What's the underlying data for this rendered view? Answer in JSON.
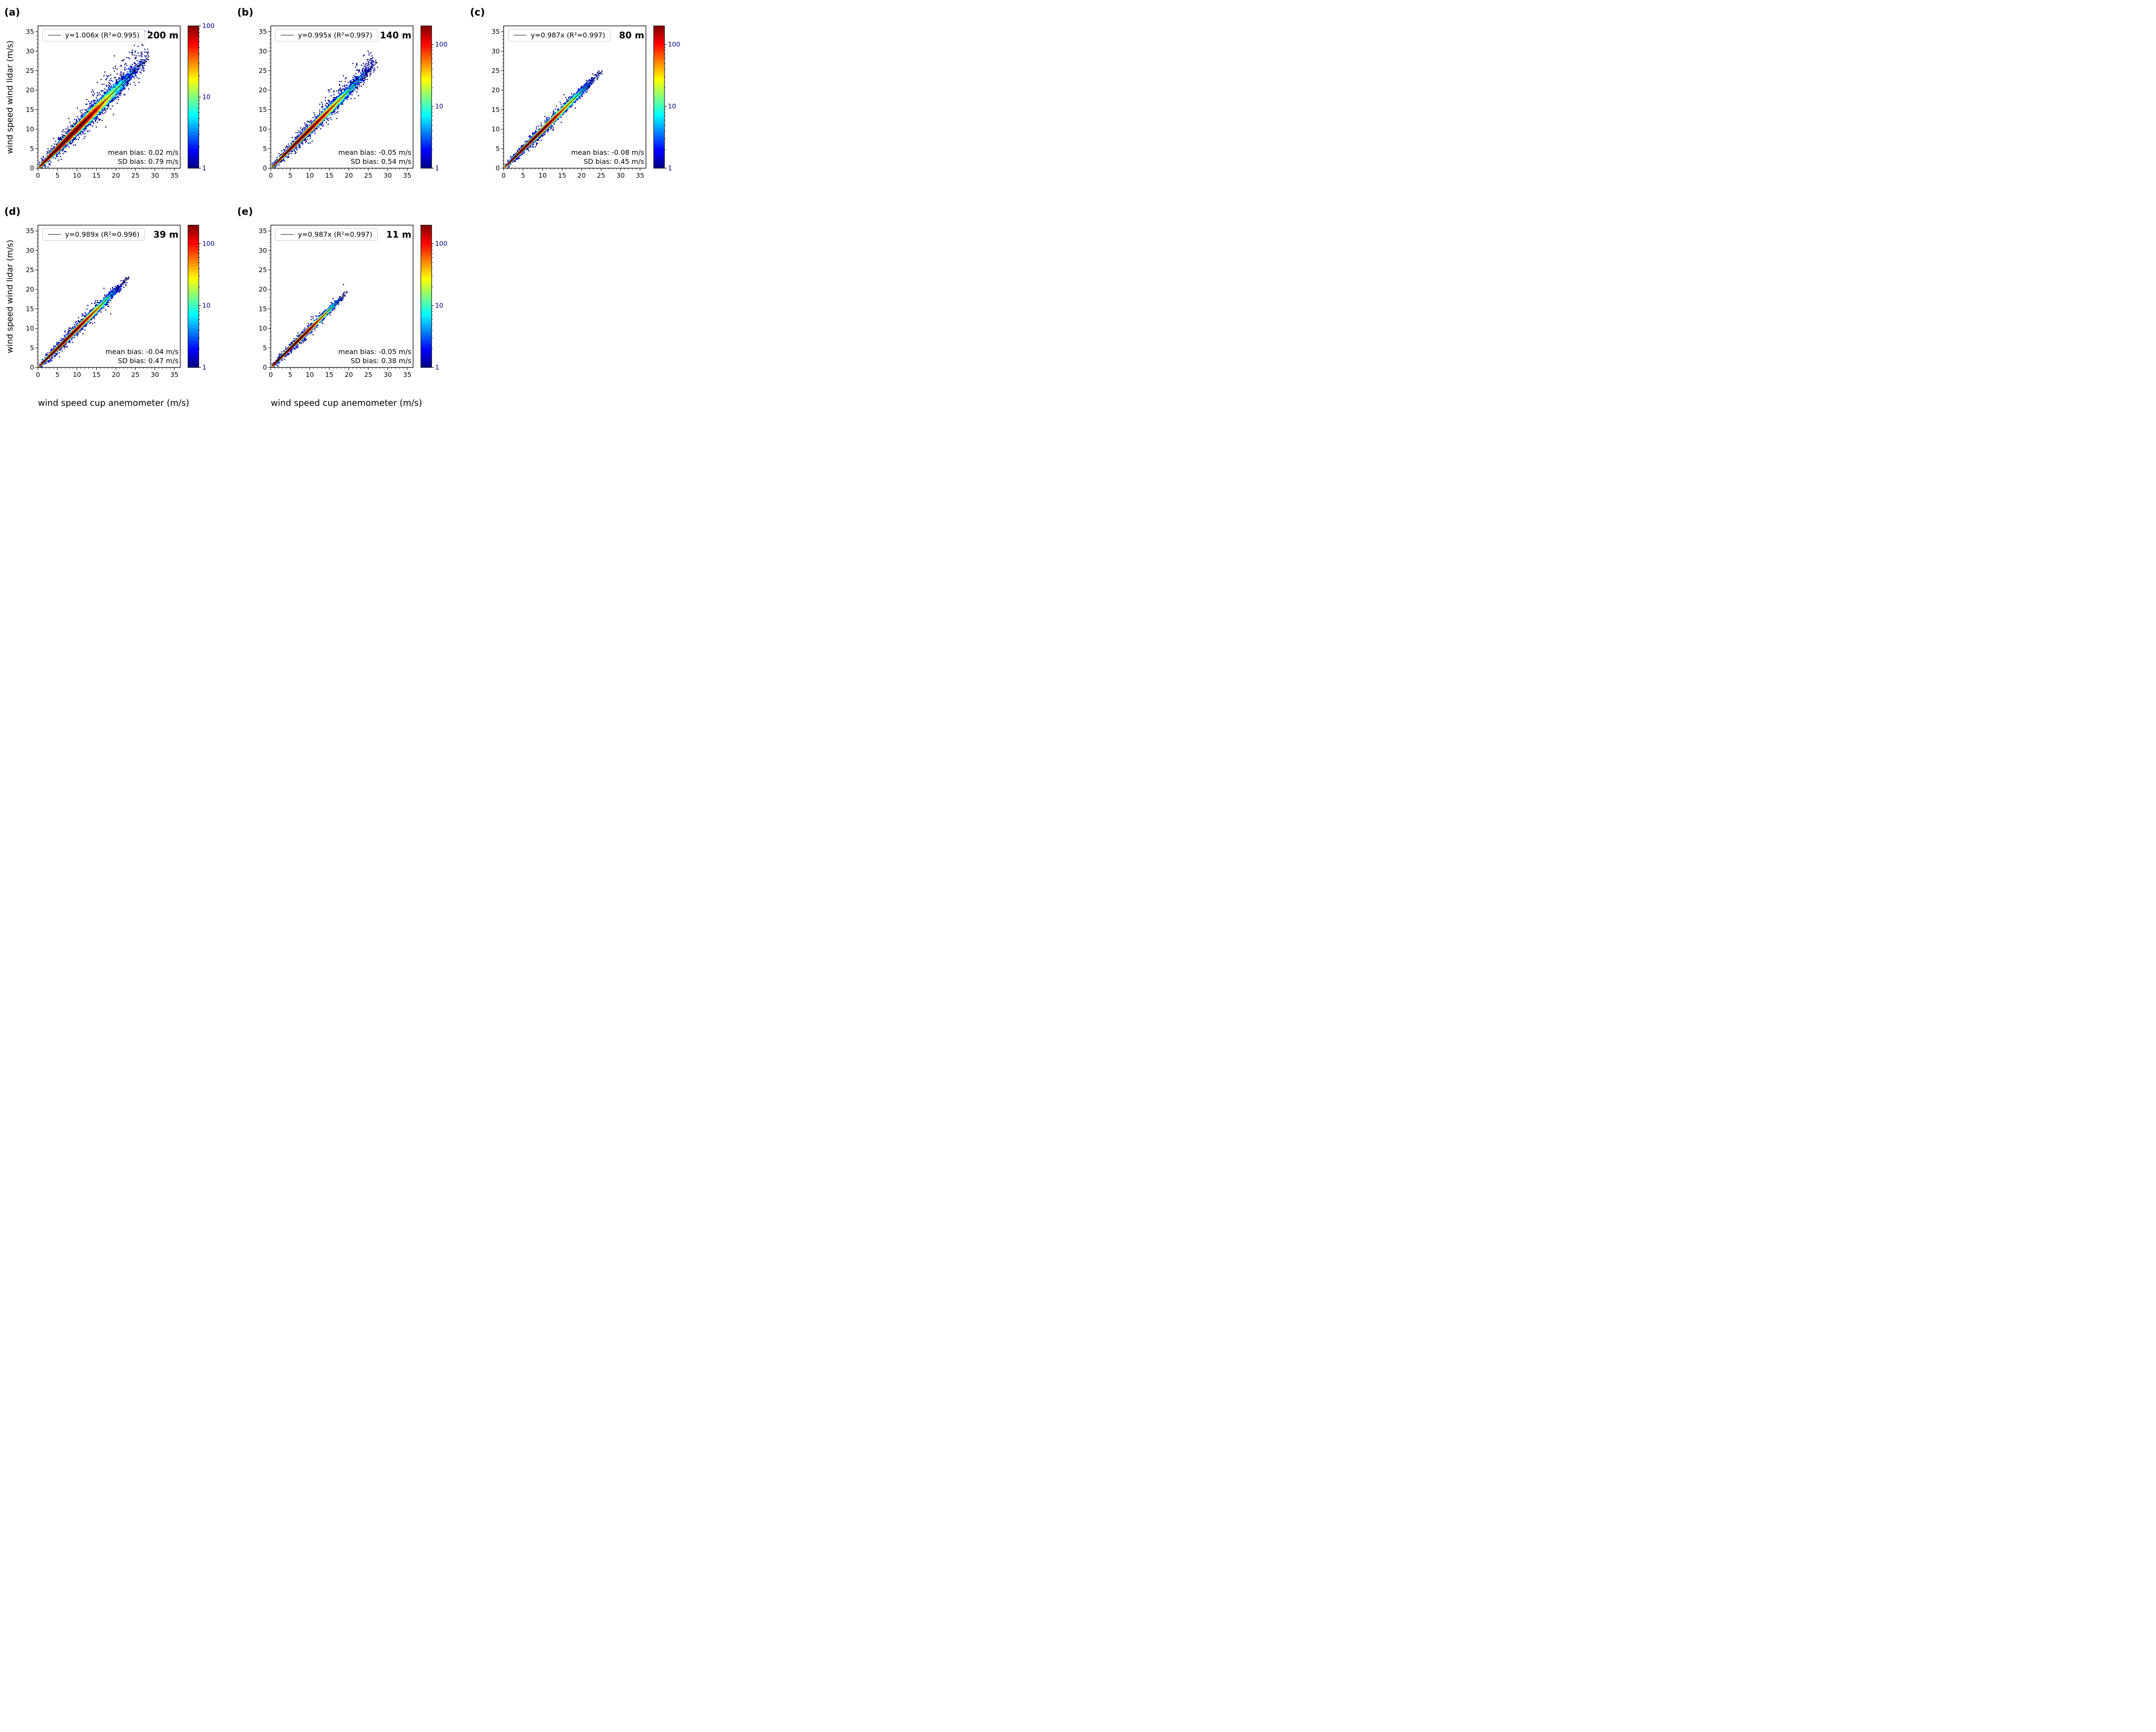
{
  "chart_data": {
    "type": "heatmap",
    "subtype": "density_scatter_2d_histogram",
    "colormap": "jet",
    "color_scale": "log",
    "grid": "off",
    "xlabel": "wind speed cup anemometer (m/s)",
    "ylabel": "wind speed wind lidar (m/s)",
    "xlim": [
      0,
      36.5
    ],
    "ylim": [
      0,
      36.5
    ],
    "x_ticks": [
      0,
      5,
      10,
      15,
      20,
      25,
      30,
      35
    ],
    "y_ticks": [
      0,
      5,
      10,
      15,
      20,
      25,
      30,
      35
    ],
    "colorbar_ticks": [
      1,
      10,
      100
    ],
    "panels": [
      {
        "tag": "(a)",
        "height_label": "200 m",
        "fit_label": "y=1.006x (R²=0.995)",
        "slope": 1.006,
        "r_squared": 0.995,
        "mean_bias_label": "mean bias: 0.02 m/s",
        "sd_bias_label": "SD bias: 0.79 m/s",
        "mean_bias_ms": 0.02,
        "sd_bias_ms": 0.79,
        "data_max_ms": 28.5,
        "colorbar_max": 100,
        "high_scatter_cloud": true
      },
      {
        "tag": "(b)",
        "height_label": "140 m",
        "fit_label": "y=0.995x (R²=0.997)",
        "slope": 0.995,
        "r_squared": 0.997,
        "mean_bias_label": "mean bias: -0.05 m/s",
        "sd_bias_label": "SD bias: 0.54 m/s",
        "mean_bias_ms": -0.05,
        "sd_bias_ms": 0.54,
        "data_max_ms": 27.3,
        "colorbar_max": 200,
        "high_scatter_cloud": true
      },
      {
        "tag": "(c)",
        "height_label": "80 m",
        "fit_label": "y=0.987x (R²=0.997)",
        "slope": 0.987,
        "r_squared": 0.997,
        "mean_bias_label": "mean bias: -0.08 m/s",
        "sd_bias_label": "SD bias: 0.45 m/s",
        "mean_bias_ms": -0.08,
        "sd_bias_ms": 0.45,
        "data_max_ms": 25.4,
        "colorbar_max": 200,
        "high_scatter_cloud": false
      },
      {
        "tag": "(d)",
        "height_label": "39 m",
        "fit_label": "y=0.989x (R²=0.996)",
        "slope": 0.989,
        "r_squared": 0.996,
        "mean_bias_label": "mean bias: -0.04 m/s",
        "sd_bias_label": "SD bias: 0.47 m/s",
        "mean_bias_ms": -0.04,
        "sd_bias_ms": 0.47,
        "data_max_ms": 23.4,
        "colorbar_max": 200,
        "high_scatter_cloud": false
      },
      {
        "tag": "(e)",
        "height_label": "11 m",
        "fit_label": "y=0.987x (R²=0.997)",
        "slope": 0.987,
        "r_squared": 0.997,
        "mean_bias_label": "mean bias: -0.05 m/s",
        "sd_bias_label": "SD bias: 0.38 m/s",
        "mean_bias_ms": -0.05,
        "sd_bias_ms": 0.38,
        "data_max_ms": 19.5,
        "colorbar_max": 200,
        "high_scatter_cloud": false
      }
    ]
  }
}
